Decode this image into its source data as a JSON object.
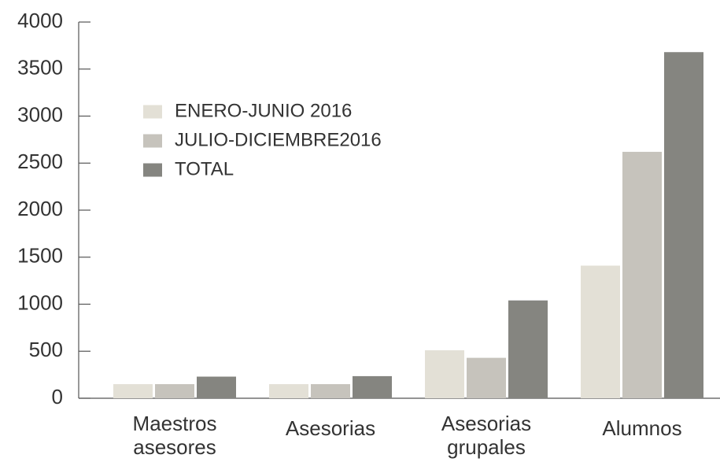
{
  "chart_data": {
    "type": "bar",
    "categories": [
      "Maestros asesores",
      "Asesorias",
      "Asesorias grupales",
      "Alumnos"
    ],
    "series": [
      {
        "name": "ENERO-JUNIO 2016",
        "color": "#e3e0d6",
        "values": [
          150,
          150,
          510,
          1410
        ]
      },
      {
        "name": "JULIO-DICIEMBRE2016",
        "color": "#c6c3bc",
        "values": [
          150,
          150,
          430,
          2620
        ]
      },
      {
        "name": "TOTAL",
        "color": "#858580",
        "values": [
          230,
          235,
          1040,
          3680
        ]
      }
    ],
    "ylim": [
      0,
      4000
    ],
    "yticks": [
      0,
      500,
      1000,
      1500,
      2000,
      2500,
      3000,
      3500,
      4000
    ],
    "grid": false,
    "legend": "upper left"
  }
}
